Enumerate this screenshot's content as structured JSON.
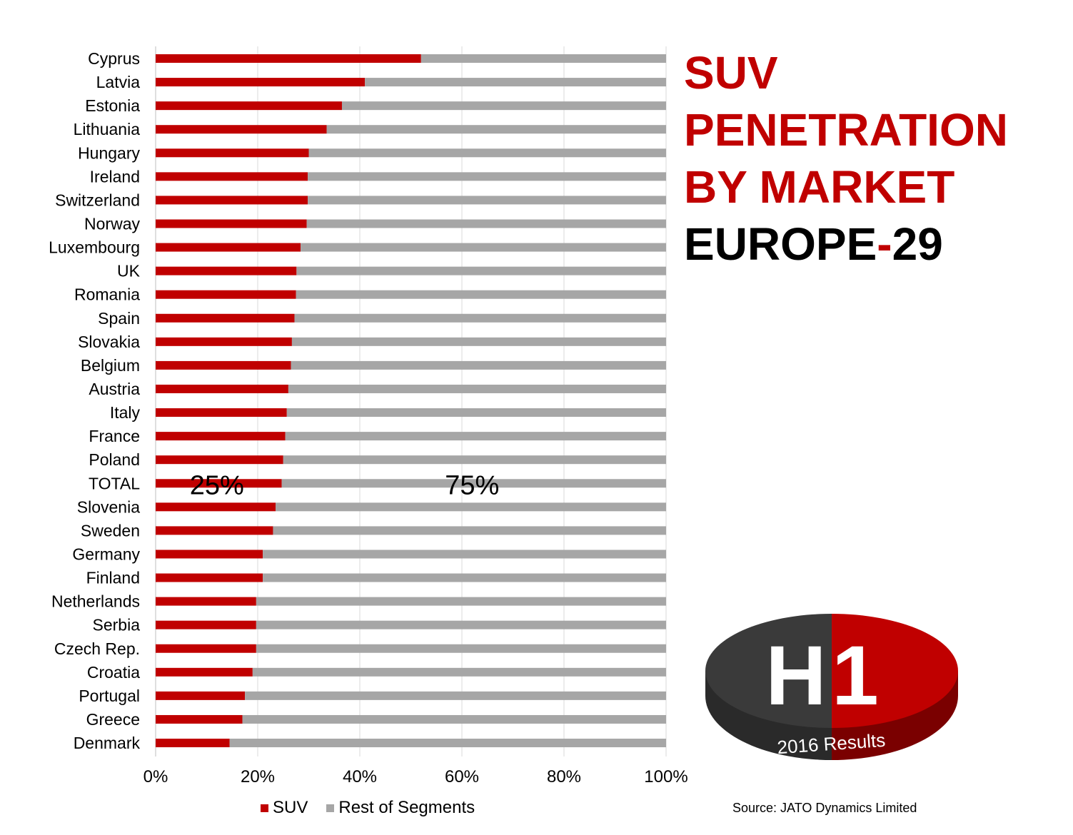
{
  "chart_data": {
    "type": "bar",
    "orientation": "horizontal",
    "stacked": "percent",
    "categories": [
      "Cyprus",
      "Latvia",
      "Estonia",
      "Lithuania",
      "Hungary",
      "Ireland",
      "Switzerland",
      "Norway",
      "Luxembourg",
      "UK",
      "Romania",
      "Spain",
      "Slovakia",
      "Belgium",
      "Austria",
      "Italy",
      "France",
      "Poland",
      "TOTAL",
      "Slovenia",
      "Sweden",
      "Germany",
      "Finland",
      "Netherlands",
      "Serbia",
      "Czech Rep.",
      "Croatia",
      "Portugal",
      "Greece",
      "Denmark"
    ],
    "series": [
      {
        "name": "SUV",
        "color": "#c00000",
        "values": [
          52,
          41,
          36.5,
          33.5,
          30,
          29.8,
          29.8,
          29.6,
          28.4,
          27.6,
          27.5,
          27.2,
          26.7,
          26.5,
          26,
          25.7,
          25.4,
          25,
          24.7,
          23.5,
          23,
          21,
          21,
          19.7,
          19.7,
          19.7,
          19,
          17.5,
          17,
          14.5
        ]
      },
      {
        "name": "Rest of Segments",
        "color": "#a6a6a6",
        "values": [
          48,
          59,
          63.5,
          66.5,
          70,
          70.2,
          70.2,
          70.4,
          71.6,
          72.4,
          72.5,
          72.8,
          73.3,
          73.5,
          74,
          74.3,
          74.6,
          75,
          75.3,
          76.5,
          77,
          79,
          79,
          80.3,
          80.3,
          80.3,
          81,
          82.5,
          83,
          85.5
        ]
      }
    ],
    "xlim": [
      0,
      100
    ],
    "xticks": [
      "0%",
      "20%",
      "40%",
      "60%",
      "80%",
      "100%"
    ],
    "xtick_values": [
      0,
      20,
      40,
      60,
      80,
      100
    ],
    "grid": true,
    "legend_position": "bottom",
    "annotations": [
      {
        "text": "25%",
        "category": "TOTAL",
        "x": 12
      },
      {
        "text": "75%",
        "category": "TOTAL",
        "x": 62
      }
    ]
  },
  "title": {
    "line1": "SUV",
    "line2": "PENETRATION",
    "line3": "BY MARKET",
    "line4_main": "EUROPE",
    "line4_dash": "-",
    "line4_num": "29"
  },
  "legend": {
    "suv": "SUV",
    "rest": "Rest of Segments"
  },
  "source": "Source: JATO Dynamics Limited",
  "badge": {
    "letter": "H",
    "digit": "1",
    "caption": "2016 Results",
    "color_left": "#3a3a3a",
    "color_right": "#c00000"
  }
}
